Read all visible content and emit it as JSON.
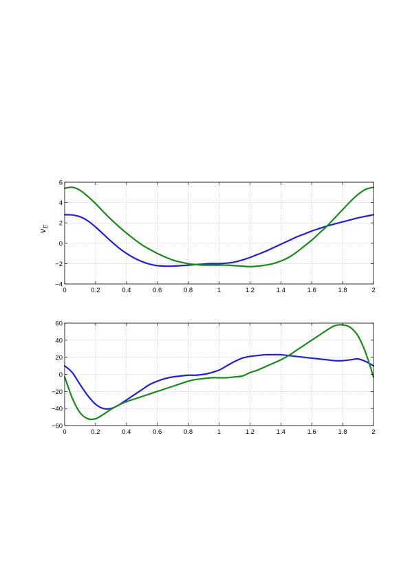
{
  "chart_data": [
    {
      "type": "line",
      "title": "",
      "xlabel": "",
      "ylabel": "v_E",
      "ylabel_main": "v",
      "ylabel_sub": "E",
      "xlim": [
        0,
        2
      ],
      "ylim": [
        -4,
        6
      ],
      "xticks": [
        0,
        0.2,
        0.4,
        0.6,
        0.8,
        1,
        1.2,
        1.4,
        1.6,
        1.8,
        2
      ],
      "xtick_labels": [
        "0",
        "0.2",
        "0.4",
        "0.6",
        "0.8",
        "1",
        "1.2",
        "1.4",
        "1.6",
        "1.8",
        "2"
      ],
      "yticks": [
        -4,
        -2,
        0,
        2,
        4,
        6
      ],
      "ytick_labels": [
        "−4",
        "−2",
        "0",
        "2",
        "4",
        "6"
      ],
      "grid": true,
      "series": [
        {
          "color": "#1f1fe0",
          "x": [
            0,
            0.05,
            0.1,
            0.15,
            0.2,
            0.25,
            0.3,
            0.35,
            0.4,
            0.45,
            0.5,
            0.55,
            0.6,
            0.65,
            0.7,
            0.75,
            0.8,
            0.85,
            0.9,
            0.95,
            1.0,
            1.05,
            1.1,
            1.15,
            1.2,
            1.25,
            1.3,
            1.35,
            1.4,
            1.45,
            1.5,
            1.55,
            1.6,
            1.65,
            1.7,
            1.75,
            1.8,
            1.85,
            1.9,
            1.95,
            2.0
          ],
          "y": [
            2.8,
            2.78,
            2.6,
            2.2,
            1.6,
            0.9,
            0.2,
            -0.45,
            -1.0,
            -1.45,
            -1.8,
            -2.05,
            -2.2,
            -2.25,
            -2.25,
            -2.2,
            -2.15,
            -2.1,
            -2.05,
            -2.0,
            -2.0,
            -1.95,
            -1.85,
            -1.65,
            -1.4,
            -1.1,
            -0.8,
            -0.45,
            -0.1,
            0.25,
            0.6,
            0.9,
            1.2,
            1.45,
            1.7,
            1.9,
            2.1,
            2.3,
            2.5,
            2.65,
            2.8
          ]
        },
        {
          "color": "#1a8a1a",
          "x": [
            0,
            0.05,
            0.1,
            0.15,
            0.2,
            0.25,
            0.3,
            0.35,
            0.4,
            0.45,
            0.5,
            0.55,
            0.6,
            0.65,
            0.7,
            0.75,
            0.8,
            0.85,
            0.9,
            0.95,
            1.0,
            1.05,
            1.1,
            1.15,
            1.2,
            1.25,
            1.3,
            1.35,
            1.4,
            1.45,
            1.5,
            1.55,
            1.6,
            1.65,
            1.7,
            1.75,
            1.8,
            1.85,
            1.9,
            1.95,
            2.0
          ],
          "y": [
            5.4,
            5.5,
            5.2,
            4.6,
            3.9,
            3.1,
            2.35,
            1.65,
            1.0,
            0.4,
            -0.15,
            -0.6,
            -1.0,
            -1.35,
            -1.65,
            -1.85,
            -2.0,
            -2.1,
            -2.15,
            -2.15,
            -2.15,
            -2.15,
            -2.2,
            -2.25,
            -2.3,
            -2.25,
            -2.15,
            -2.0,
            -1.75,
            -1.4,
            -0.9,
            -0.3,
            0.3,
            1.0,
            1.7,
            2.5,
            3.3,
            4.1,
            4.8,
            5.3,
            5.5
          ]
        }
      ]
    },
    {
      "type": "line",
      "title": "",
      "xlabel": "",
      "ylabel": "",
      "xlim": [
        0,
        2
      ],
      "ylim": [
        -60,
        60
      ],
      "xticks": [
        0,
        0.2,
        0.4,
        0.6,
        0.8,
        1,
        1.2,
        1.4,
        1.6,
        1.8,
        2
      ],
      "xtick_labels": [
        "0",
        "0.2",
        "0.4",
        "0.6",
        "0.8",
        "1",
        "1.2",
        "1.4",
        "1.6",
        "1.8",
        "2"
      ],
      "yticks": [
        -60,
        -40,
        -20,
        0,
        20,
        40,
        60
      ],
      "ytick_labels": [
        "−60",
        "−40",
        "−20",
        "0",
        "20",
        "40",
        "60"
      ],
      "grid": true,
      "series": [
        {
          "color": "#1f1fe0",
          "x": [
            0,
            0.05,
            0.1,
            0.15,
            0.2,
            0.25,
            0.3,
            0.35,
            0.4,
            0.45,
            0.5,
            0.55,
            0.6,
            0.65,
            0.7,
            0.75,
            0.8,
            0.85,
            0.9,
            0.95,
            1.0,
            1.05,
            1.1,
            1.15,
            1.2,
            1.25,
            1.3,
            1.35,
            1.4,
            1.45,
            1.5,
            1.55,
            1.6,
            1.65,
            1.7,
            1.75,
            1.8,
            1.85,
            1.9,
            1.95,
            2.0
          ],
          "y": [
            10,
            2,
            -12,
            -25,
            -35,
            -40,
            -40,
            -36,
            -30,
            -24,
            -18,
            -12,
            -8,
            -5,
            -3,
            -2,
            -1,
            -1,
            0,
            2,
            5,
            10,
            15,
            19,
            21,
            22,
            23,
            23,
            23,
            22,
            21,
            20,
            19,
            18,
            17,
            16,
            16,
            17,
            18,
            15,
            10
          ]
        },
        {
          "color": "#1a8a1a",
          "x": [
            0,
            0.05,
            0.1,
            0.15,
            0.2,
            0.25,
            0.3,
            0.35,
            0.4,
            0.45,
            0.5,
            0.55,
            0.6,
            0.65,
            0.7,
            0.75,
            0.8,
            0.85,
            0.9,
            0.95,
            1.0,
            1.05,
            1.1,
            1.15,
            1.2,
            1.25,
            1.3,
            1.35,
            1.4,
            1.45,
            1.5,
            1.55,
            1.6,
            1.65,
            1.7,
            1.75,
            1.8,
            1.85,
            1.9,
            1.95,
            2.0
          ],
          "y": [
            -3,
            -28,
            -45,
            -52,
            -52,
            -47,
            -41,
            -36,
            -32,
            -29,
            -26,
            -23,
            -20,
            -17,
            -14,
            -11,
            -8,
            -6,
            -5,
            -4,
            -4,
            -4,
            -3,
            -2,
            2,
            5,
            9,
            13,
            17,
            22,
            28,
            34,
            40,
            46,
            52,
            57,
            58,
            55,
            45,
            25,
            -3
          ]
        }
      ]
    }
  ]
}
